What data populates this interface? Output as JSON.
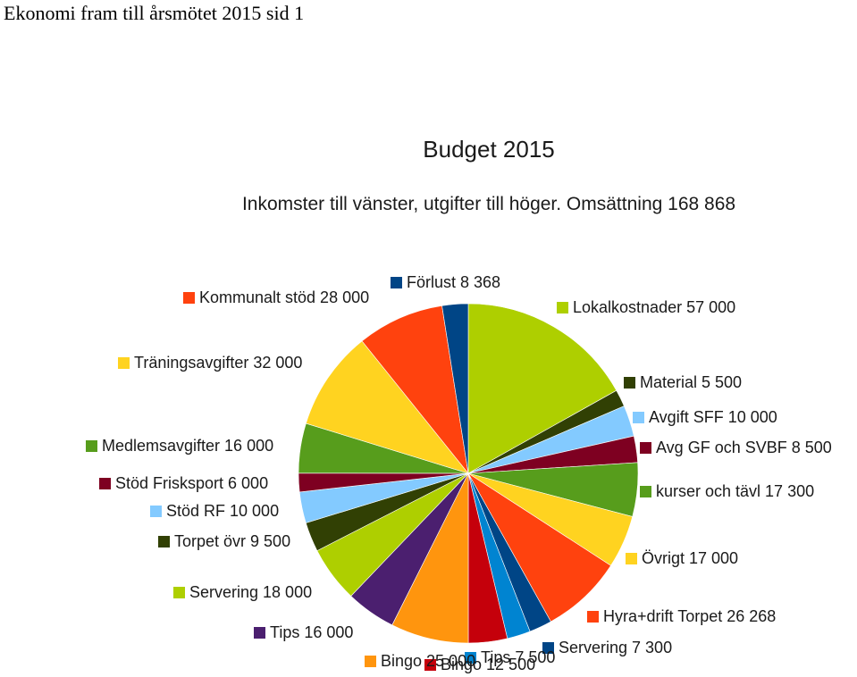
{
  "page_title": "Ekonomi fram till årsmötet 2015 sid 1",
  "chart_data": {
    "type": "pie",
    "title": "Budget 2015",
    "subtitle": "Inkomster till vänster, utgifter till höger. Omsättning 168 868",
    "slices": [
      {
        "label": "Lokalkostnader 57 000",
        "value": 57000,
        "color": "#aecf00"
      },
      {
        "label": "Material 5 500",
        "value": 5500,
        "color": "#314004"
      },
      {
        "label": "Avgift SFF 10 000",
        "value": 10000,
        "color": "#83caff"
      },
      {
        "label": "Avg GF och SVBF 8 500",
        "value": 8500,
        "color": "#7e0021"
      },
      {
        "label": "kurser och tävl 17 300",
        "value": 17300,
        "color": "#579d1c"
      },
      {
        "label": "Övrigt 17 000",
        "value": 17000,
        "color": "#ffd320"
      },
      {
        "label": "Hyra+drift Torpet 26 268",
        "value": 26268,
        "color": "#ff420e"
      },
      {
        "label": "Servering 7 300",
        "value": 7300,
        "color": "#004586"
      },
      {
        "label": "Tips 7 500",
        "value": 7500,
        "color": "#0084d1"
      },
      {
        "label": "Bingo 12 500",
        "value": 12500,
        "color": "#c5000b"
      },
      {
        "label": "Bingo 25 000",
        "value": 25000,
        "color": "#ff950e"
      },
      {
        "label": "Tips 16 000",
        "value": 16000,
        "color": "#4b1f6f"
      },
      {
        "label": "Servering 18 000",
        "value": 18000,
        "color": "#aecf00"
      },
      {
        "label": "Torpet övr 9 500",
        "value": 9500,
        "color": "#314004"
      },
      {
        "label": "Stöd RF 10 000",
        "value": 10000,
        "color": "#83caff"
      },
      {
        "label": "Stöd Frisksport 6 000",
        "value": 6000,
        "color": "#7e0021"
      },
      {
        "label": "Medlemsavgifter 16 000",
        "value": 16000,
        "color": "#579d1c"
      },
      {
        "label": "Träningsavgifter 32 000",
        "value": 32000,
        "color": "#ffd320"
      },
      {
        "label": "Kommunalt stöd 28 000",
        "value": 28000,
        "color": "#ff420e"
      },
      {
        "label": "Förlust 8 368",
        "value": 8368,
        "color": "#004586"
      }
    ]
  }
}
